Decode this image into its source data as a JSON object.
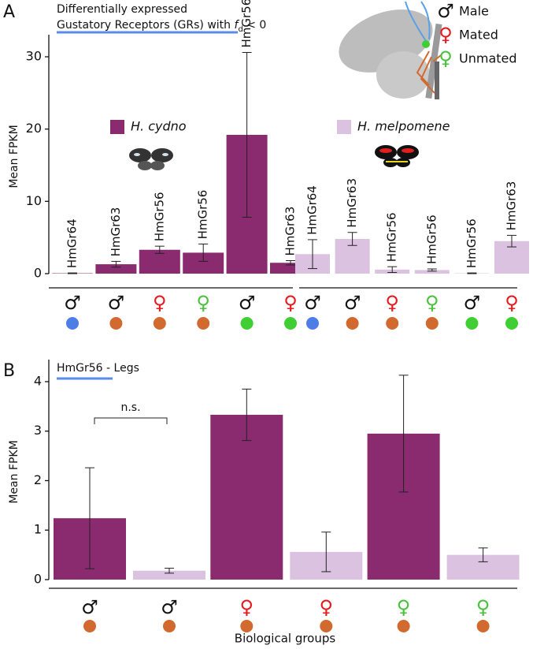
{
  "chart_data": [
    {
      "type": "bar",
      "panel": "A",
      "title": "Differentially expressed",
      "subtitle_parts": [
        "Gustatory Receptors (GRs) with ",
        "f",
        "d",
        " < 0"
      ],
      "ylabel": "Mean FPKM",
      "ylim": [
        0,
        32.4
      ],
      "yticks": [
        0,
        10,
        20,
        30
      ],
      "sex_legend": [
        {
          "symbol": "♂",
          "label": "Male",
          "color": "#111111"
        },
        {
          "symbol": "♀",
          "label": "Mated",
          "color": "#e8191e"
        },
        {
          "symbol": "♀",
          "label": "Unmated",
          "color": "#4ac13d"
        }
      ],
      "series": [
        {
          "name": "H. cydno",
          "color": "#8a2b6f",
          "values": [
            0.05,
            1.3,
            3.3,
            2.9,
            19.2,
            1.5
          ],
          "errors": [
            0.05,
            0.4,
            0.5,
            1.2,
            11.4,
            0.3
          ],
          "bar_labels": [
            "HmGr64",
            "HmGr63",
            "HmGr56",
            "HmGr56",
            "HmGr56",
            "HmGr63"
          ],
          "symbols": [
            "♂",
            "♂",
            "♀",
            "♀",
            "♂",
            "♀"
          ],
          "symbol_colors": [
            "#111111",
            "#111111",
            "#e8191e",
            "#4ac13d",
            "#111111",
            "#e8191e"
          ],
          "dot_colors": [
            "#4f7de8",
            "#d2692f",
            "#d2692f",
            "#d2692f",
            "#3fcf35",
            "#3fcf35"
          ]
        },
        {
          "name": "H. melpomene",
          "color": "#dbc2e0",
          "values": [
            2.7,
            4.8,
            0.56,
            0.5,
            0.05,
            4.5
          ],
          "errors": [
            2.0,
            0.9,
            0.4,
            0.15,
            0.05,
            0.8
          ],
          "bar_labels": [
            "HmGr64",
            "HmGr63",
            "HmGr56",
            "HmGr56",
            "HmGr56",
            "HmGr63"
          ],
          "symbols": [
            "♂",
            "♂",
            "♀",
            "♀",
            "♂",
            "♀"
          ],
          "symbol_colors": [
            "#111111",
            "#111111",
            "#e8191e",
            "#4ac13d",
            "#111111",
            "#e8191e"
          ],
          "dot_colors": [
            "#4f7de8",
            "#d2692f",
            "#d2692f",
            "#d2692f",
            "#3fcf35",
            "#3fcf35"
          ]
        }
      ]
    },
    {
      "type": "bar",
      "panel": "B",
      "title": "HmGr56 - Legs",
      "ylabel": "Mean FPKM",
      "xlabel": "Biological groups",
      "ylim": [
        0,
        4.35
      ],
      "yticks": [
        0,
        1,
        2,
        3,
        4
      ],
      "symbols": [
        "♂",
        "♀",
        "♀"
      ],
      "symbol_colors": [
        "#111111",
        "#e8191e",
        "#4ac13d"
      ],
      "dot_colors": [
        "#d2692f",
        "#d2692f",
        "#d2692f"
      ],
      "annotation": "n.s.",
      "series": [
        {
          "color": "#8a2b6f",
          "values": [
            1.24,
            3.33,
            2.95
          ],
          "errors": [
            1.02,
            0.52,
            1.18
          ]
        },
        {
          "color": "#dbc2e0",
          "values": [
            0.18,
            0.56,
            0.5
          ],
          "errors": [
            0.05,
            0.4,
            0.14
          ]
        }
      ]
    }
  ]
}
